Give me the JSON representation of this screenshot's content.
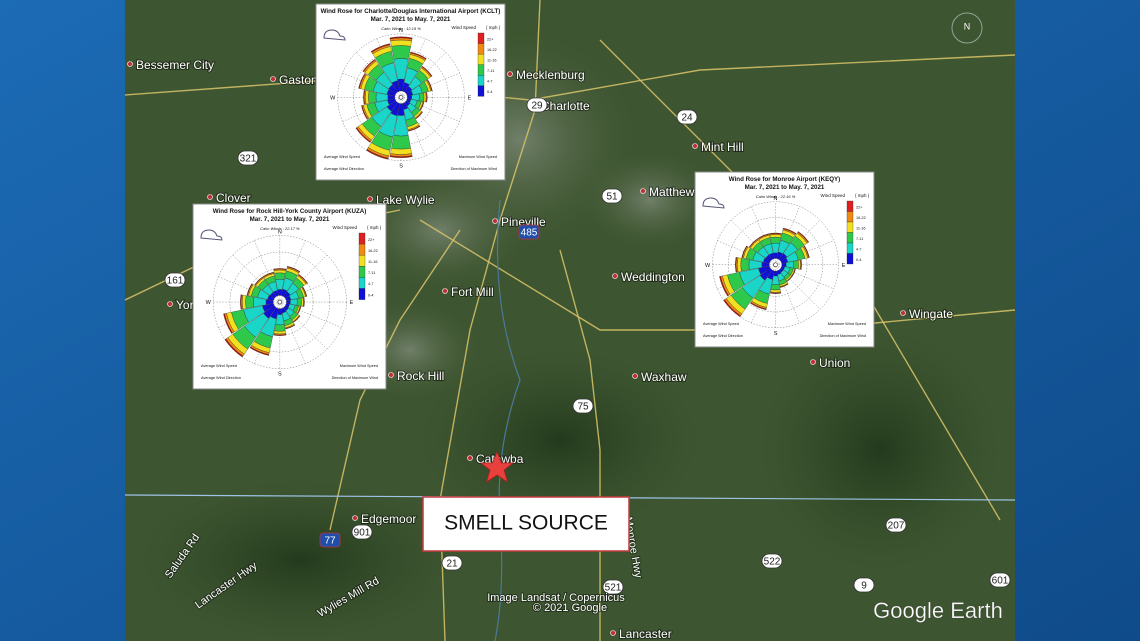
{
  "map": {
    "places": [
      "Bessemer City",
      "Gastonia",
      "Mecklenburg",
      "Charlotte",
      "Mint Hill",
      "Clover",
      "Lake Wylie",
      "Matthews",
      "Pineville",
      "Weddington",
      "Fort Mill",
      "York",
      "Wingate",
      "Union",
      "Waxhaw",
      "Rock Hill",
      "Catawba",
      "Edgemoor",
      "Lancaster"
    ],
    "roads": [
      "Lancaster Hwy",
      "Saluda Rd",
      "Wylies Mill Rd",
      "Monroe Hwy"
    ],
    "routes": [
      "321",
      "161",
      "29",
      "24",
      "51",
      "485",
      "75",
      "77",
      "901",
      "21",
      "521",
      "522",
      "207",
      "9",
      "601"
    ],
    "compass": "N",
    "attribution": [
      "Image Landsat / Copernicus",
      "© 2021 Google"
    ],
    "brand": "Google Earth",
    "callout": "SMELL SOURCE",
    "insets": [
      {
        "title": "Wind Rose for Charlotte/Douglas International Airport (KCLT)",
        "period": "Mar. 7, 2021 to May. 7, 2021",
        "calm": "Calm Winds : 12.19 %",
        "legend_title": "Wind Speed",
        "unit": "( mph )",
        "speeds": [
          "22+",
          "16-22",
          "11-16",
          "7-11",
          "4-7",
          "0-4"
        ],
        "directions": [
          "N",
          "E",
          "S",
          "W"
        ],
        "stats": [
          "Average Wind Speed",
          "Maximum Wind Speed",
          "Average Wind Direction",
          "Direction of Maximum Wind"
        ]
      },
      {
        "title": "Wind Rose for Rock Hill-York County Airport (KUZA)",
        "period": "Mar. 7, 2021 to May. 7, 2021",
        "calm": "Calm Winds : 22.17 %",
        "legend_title": "Wind Speed",
        "unit": "( mph )",
        "speeds": [
          "22+",
          "16-22",
          "11-16",
          "7-11",
          "4-7",
          "0-4"
        ],
        "directions": [
          "N",
          "E",
          "S",
          "W"
        ],
        "stats": [
          "Average Wind Speed",
          "Maximum Wind Speed",
          "Average Wind Direction",
          "Direction of Maximum Wind"
        ]
      },
      {
        "title": "Wind Rose for Monroe Airport (KEQY)",
        "period": "Mar. 7, 2021 to May. 7, 2021",
        "calm": "Calm Winds : 22.16 %",
        "legend_title": "Wind Speed",
        "unit": "( mph )",
        "speeds": [
          "22+",
          "16-22",
          "11-16",
          "7-11",
          "4-7",
          "0-4"
        ],
        "directions": [
          "N",
          "E",
          "S",
          "W"
        ],
        "stats": [
          "Average Wind Speed",
          "Maximum Wind Speed",
          "Average Wind Direction",
          "Direction of Maximum Wind"
        ]
      }
    ]
  }
}
